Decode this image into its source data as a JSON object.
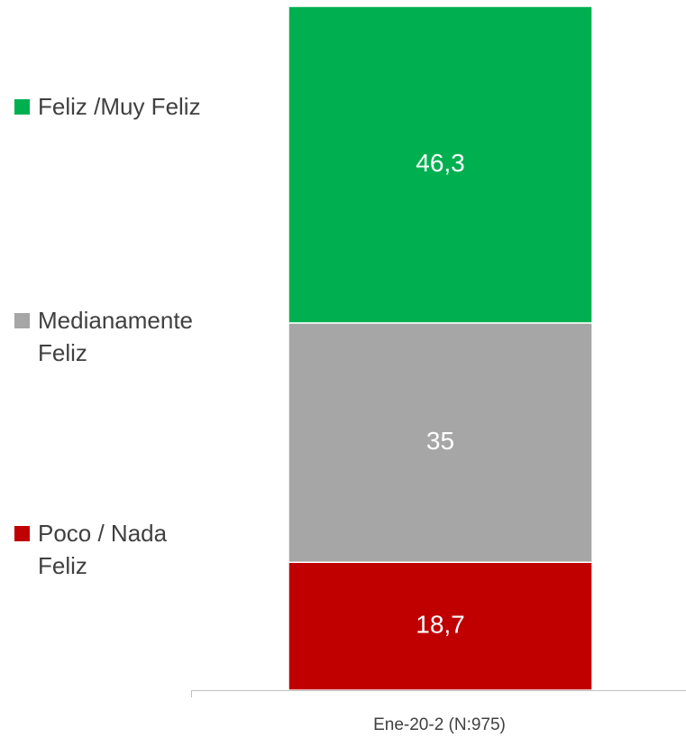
{
  "chart_data": {
    "type": "stacked_bar",
    "categories": [
      "Ene-20-2 (N:975)"
    ],
    "series": [
      {
        "name": "Poco / Nada Feliz",
        "color": "#c00000",
        "values": [
          18.7
        ],
        "value_labels": [
          "18,7"
        ]
      },
      {
        "name": "Medianamente Feliz",
        "color": "#a6a6a6",
        "values": [
          35
        ],
        "value_labels": [
          "35"
        ]
      },
      {
        "name": "Feliz /Muy Feliz",
        "color": "#00b050",
        "values": [
          46.3
        ],
        "value_labels": [
          "46,3"
        ]
      }
    ],
    "ylim": [
      0,
      100
    ]
  }
}
